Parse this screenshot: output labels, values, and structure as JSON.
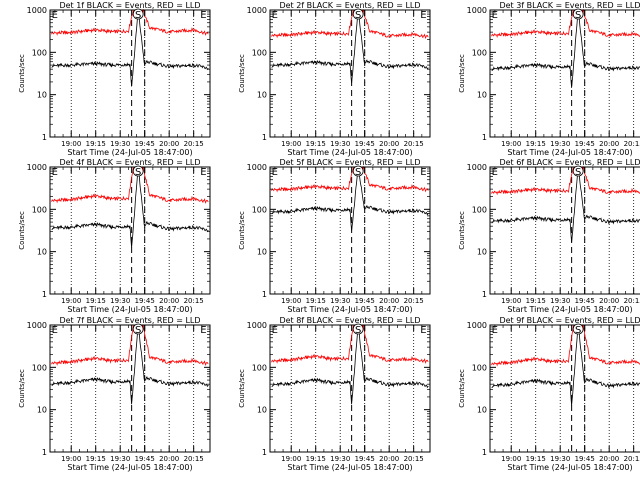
{
  "figure": {
    "ylabel": "Counts/sec",
    "xlabel": "Start Time (24-Jul-05 18:47:00)",
    "ytick_labels": [
      "1",
      "10",
      "100",
      "1000"
    ],
    "xtick_labels": [
      "19:00",
      "19:15",
      "19:30",
      "19:45",
      "20:00",
      "20:15"
    ],
    "marker_labels": {
      "E": "E",
      "S": "S"
    },
    "colors": {
      "events": "#000000",
      "lld": "#ff0000",
      "axes": "#000000"
    }
  },
  "chart_data": [
    {
      "type": "line",
      "title": "Det 1f BLACK = Events, RED = LLD",
      "ylim": [
        1,
        1000
      ],
      "yscale": "log",
      "x_range": [
        "18:47",
        "20:25"
      ],
      "vlines_dotted": [
        "19:00",
        "19:15",
        "19:30",
        "19:45",
        "20:00",
        "20:15"
      ],
      "vlines_dashed": [
        "19:37",
        "19:45"
      ],
      "markers": {
        "E_start": "18:48",
        "S": "19:41",
        "E_end": "20:19"
      },
      "series": [
        {
          "name": "LLD",
          "x": [
            "18:48",
            "19:00",
            "19:15",
            "19:25",
            "19:35",
            "19:38",
            "19:41",
            "19:44",
            "19:48",
            "20:00",
            "20:15",
            "20:24"
          ],
          "values": [
            285,
            295,
            340,
            305,
            320,
            1000,
            1000,
            1000,
            380,
            300,
            340,
            270
          ]
        },
        {
          "name": "Events",
          "x": [
            "18:48",
            "19:00",
            "19:15",
            "19:25",
            "19:36",
            "19:37",
            "19:41",
            "19:45",
            "19:46",
            "20:00",
            "20:15",
            "20:24"
          ],
          "values": [
            48,
            50,
            54,
            50,
            52,
            15,
            1000,
            48,
            60,
            46,
            50,
            42
          ]
        }
      ]
    },
    {
      "type": "line",
      "title": "Det 2f BLACK = Events, RED = LLD",
      "ylim": [
        1,
        1000
      ],
      "yscale": "log",
      "x_range": [
        "18:47",
        "20:25"
      ],
      "vlines_dotted": [
        "19:00",
        "19:15",
        "19:30",
        "19:45",
        "20:00",
        "20:15"
      ],
      "vlines_dashed": [
        "19:37",
        "19:45"
      ],
      "markers": {
        "E_start": "18:48",
        "S": "19:41",
        "E_end": "20:19"
      },
      "series": [
        {
          "name": "LLD",
          "x": [
            "18:48",
            "19:00",
            "19:15",
            "19:25",
            "19:35",
            "19:38",
            "19:41",
            "19:44",
            "19:48",
            "20:00",
            "20:15",
            "20:24"
          ],
          "values": [
            250,
            260,
            300,
            270,
            280,
            1000,
            1000,
            1000,
            320,
            240,
            270,
            230
          ]
        },
        {
          "name": "Events",
          "x": [
            "18:48",
            "19:00",
            "19:15",
            "19:25",
            "19:36",
            "19:37",
            "19:41",
            "19:45",
            "19:46",
            "20:00",
            "20:15",
            "20:24"
          ],
          "values": [
            48,
            52,
            58,
            52,
            55,
            18,
            1000,
            50,
            62,
            45,
            52,
            43
          ]
        }
      ]
    },
    {
      "type": "line",
      "title": "Det 3f BLACK = Events, RED = LLD",
      "ylim": [
        1,
        1000
      ],
      "yscale": "log",
      "x_range": [
        "18:47",
        "20:25"
      ],
      "vlines_dotted": [
        "19:00",
        "19:15",
        "19:30",
        "19:45",
        "20:00",
        "20:15"
      ],
      "vlines_dashed": [
        "19:37",
        "19:45"
      ],
      "markers": {
        "E_start": "18:48",
        "S": "19:41",
        "E_end": "20:19"
      },
      "series": [
        {
          "name": "LLD",
          "x": [
            "18:48",
            "19:00",
            "19:15",
            "19:25",
            "19:35",
            "19:38",
            "19:41",
            "19:44",
            "19:48",
            "20:00",
            "20:15",
            "20:24"
          ],
          "values": [
            255,
            265,
            310,
            275,
            285,
            1000,
            1000,
            1000,
            330,
            250,
            275,
            235
          ]
        },
        {
          "name": "Events",
          "x": [
            "18:48",
            "19:00",
            "19:15",
            "19:25",
            "19:36",
            "19:37",
            "19:41",
            "19:45",
            "19:46",
            "20:00",
            "20:15",
            "20:24"
          ],
          "values": [
            40,
            44,
            50,
            45,
            47,
            14,
            1000,
            42,
            55,
            40,
            44,
            38
          ]
        }
      ]
    },
    {
      "type": "line",
      "title": "Det 4f BLACK = Events, RED = LLD",
      "ylim": [
        1,
        1000
      ],
      "yscale": "log",
      "x_range": [
        "18:47",
        "20:25"
      ],
      "vlines_dotted": [
        "19:00",
        "19:15",
        "19:30",
        "19:45",
        "20:00",
        "20:15"
      ],
      "vlines_dashed": [
        "19:37",
        "19:45"
      ],
      "markers": {
        "E_start": "18:48",
        "S": "19:41",
        "E_end": "20:19"
      },
      "series": [
        {
          "name": "LLD",
          "x": [
            "18:48",
            "19:00",
            "19:15",
            "19:25",
            "19:35",
            "19:38",
            "19:41",
            "19:44",
            "19:48",
            "20:00",
            "20:15",
            "20:24"
          ],
          "values": [
            160,
            170,
            210,
            175,
            185,
            1000,
            1000,
            1000,
            220,
            160,
            180,
            150
          ]
        },
        {
          "name": "Events",
          "x": [
            "18:48",
            "19:00",
            "19:15",
            "19:25",
            "19:36",
            "19:37",
            "19:41",
            "19:45",
            "19:46",
            "20:00",
            "20:15",
            "20:24"
          ],
          "values": [
            36,
            38,
            44,
            38,
            40,
            12,
            1000,
            36,
            48,
            34,
            38,
            32
          ]
        }
      ]
    },
    {
      "type": "line",
      "title": "Det 5f BLACK = Events, RED = LLD",
      "ylim": [
        1,
        1000
      ],
      "yscale": "log",
      "x_range": [
        "18:47",
        "20:25"
      ],
      "vlines_dotted": [
        "19:00",
        "19:15",
        "19:30",
        "19:45",
        "20:00",
        "20:15"
      ],
      "vlines_dashed": [
        "19:37",
        "19:45"
      ],
      "markers": {
        "E_start": "18:48",
        "S": "19:41",
        "E_end": "20:19"
      },
      "series": [
        {
          "name": "LLD",
          "x": [
            "18:48",
            "19:00",
            "19:15",
            "19:25",
            "19:35",
            "19:38",
            "19:41",
            "19:44",
            "19:48",
            "20:00",
            "20:15",
            "20:24"
          ],
          "values": [
            290,
            300,
            350,
            310,
            320,
            1000,
            1000,
            1000,
            380,
            300,
            340,
            280
          ]
        },
        {
          "name": "Events",
          "x": [
            "18:48",
            "19:00",
            "19:15",
            "19:25",
            "19:36",
            "19:37",
            "19:41",
            "19:45",
            "19:46",
            "20:00",
            "20:15",
            "20:24"
          ],
          "values": [
            85,
            90,
            105,
            95,
            100,
            30,
            1000,
            95,
            115,
            85,
            95,
            80
          ]
        }
      ]
    },
    {
      "type": "line",
      "title": "Det 6f BLACK = Events, RED = LLD",
      "ylim": [
        1,
        1000
      ],
      "yscale": "log",
      "x_range": [
        "18:47",
        "20:25"
      ],
      "vlines_dotted": [
        "19:00",
        "19:15",
        "19:30",
        "19:45",
        "20:00",
        "20:15"
      ],
      "vlines_dashed": [
        "19:37",
        "19:45"
      ],
      "markers": {
        "E_start": "18:48",
        "S": "19:41",
        "E_end": "20:19"
      },
      "series": [
        {
          "name": "LLD",
          "x": [
            "18:48",
            "19:00",
            "19:15",
            "19:25",
            "19:35",
            "19:38",
            "19:41",
            "19:44",
            "19:48",
            "20:00",
            "20:15",
            "20:24"
          ],
          "values": [
            250,
            260,
            300,
            270,
            280,
            1000,
            1000,
            1000,
            320,
            250,
            275,
            240
          ]
        },
        {
          "name": "Events",
          "x": [
            "18:48",
            "19:00",
            "19:15",
            "19:25",
            "19:36",
            "19:37",
            "19:41",
            "19:45",
            "19:46",
            "20:00",
            "20:15",
            "20:24"
          ],
          "values": [
            52,
            55,
            62,
            56,
            58,
            16,
            1000,
            55,
            68,
            50,
            55,
            48
          ]
        }
      ]
    },
    {
      "type": "line",
      "title": "Det 7f BLACK = Events, RED = LLD",
      "ylim": [
        1,
        1000
      ],
      "yscale": "log",
      "x_range": [
        "18:47",
        "20:25"
      ],
      "vlines_dotted": [
        "19:00",
        "19:15",
        "19:30",
        "19:45",
        "20:00",
        "20:15"
      ],
      "vlines_dashed": [
        "19:37",
        "19:45"
      ],
      "markers": {
        "E_start": "18:48",
        "S": "19:41",
        "E_end": "20:19"
      },
      "series": [
        {
          "name": "LLD",
          "x": [
            "18:48",
            "19:00",
            "19:15",
            "19:25",
            "19:35",
            "19:38",
            "19:41",
            "19:44",
            "19:48",
            "20:00",
            "20:15",
            "20:24"
          ],
          "values": [
            125,
            135,
            165,
            140,
            150,
            1000,
            1000,
            1000,
            175,
            130,
            145,
            120
          ]
        },
        {
          "name": "Events",
          "x": [
            "18:48",
            "19:00",
            "19:15",
            "19:25",
            "19:36",
            "19:37",
            "19:41",
            "19:45",
            "19:46",
            "20:00",
            "20:15",
            "20:24"
          ],
          "values": [
            40,
            44,
            52,
            45,
            48,
            13,
            1000,
            44,
            56,
            40,
            45,
            38
          ]
        }
      ]
    },
    {
      "type": "line",
      "title": "Det 8f BLACK = Events, RED = LLD",
      "ylim": [
        1,
        1000
      ],
      "yscale": "log",
      "x_range": [
        "18:47",
        "20:25"
      ],
      "vlines_dotted": [
        "19:00",
        "19:15",
        "19:30",
        "19:45",
        "20:00",
        "20:15"
      ],
      "vlines_dashed": [
        "19:37",
        "19:45"
      ],
      "markers": {
        "E_start": "18:48",
        "S": "19:41",
        "E_end": "20:19"
      },
      "series": [
        {
          "name": "LLD",
          "x": [
            "18:48",
            "19:00",
            "19:15",
            "19:25",
            "19:35",
            "19:38",
            "19:41",
            "19:44",
            "19:48",
            "20:00",
            "20:15",
            "20:24"
          ],
          "values": [
            140,
            150,
            185,
            155,
            165,
            1000,
            1000,
            1000,
            195,
            145,
            160,
            135
          ]
        },
        {
          "name": "Events",
          "x": [
            "18:48",
            "19:00",
            "19:15",
            "19:25",
            "19:36",
            "19:37",
            "19:41",
            "19:45",
            "19:46",
            "20:00",
            "20:15",
            "20:24"
          ],
          "values": [
            38,
            42,
            50,
            43,
            46,
            13,
            1000,
            42,
            54,
            38,
            43,
            36
          ]
        }
      ]
    },
    {
      "type": "line",
      "title": "Det 9f BLACK = Events, RED = LLD",
      "ylim": [
        1,
        1000
      ],
      "yscale": "log",
      "x_range": [
        "18:47",
        "20:25"
      ],
      "vlines_dotted": [
        "19:00",
        "19:15",
        "19:30",
        "19:45",
        "20:00",
        "20:15"
      ],
      "vlines_dashed": [
        "19:37",
        "19:45"
      ],
      "markers": {
        "E_start": "18:48",
        "S": "19:41",
        "E_end": "20:19"
      },
      "series": [
        {
          "name": "LLD",
          "x": [
            "18:48",
            "19:00",
            "19:15",
            "19:25",
            "19:35",
            "19:38",
            "19:41",
            "19:44",
            "19:48",
            "20:00",
            "20:15",
            "20:24"
          ],
          "values": [
            120,
            130,
            160,
            135,
            145,
            1000,
            1000,
            1000,
            170,
            125,
            140,
            115
          ]
        },
        {
          "name": "Events",
          "x": [
            "18:48",
            "19:00",
            "19:15",
            "19:25",
            "19:36",
            "19:37",
            "19:41",
            "19:45",
            "19:46",
            "20:00",
            "20:15",
            "20:24"
          ],
          "values": [
            36,
            40,
            48,
            42,
            44,
            12,
            1000,
            40,
            52,
            36,
            42,
            34
          ]
        }
      ]
    }
  ]
}
